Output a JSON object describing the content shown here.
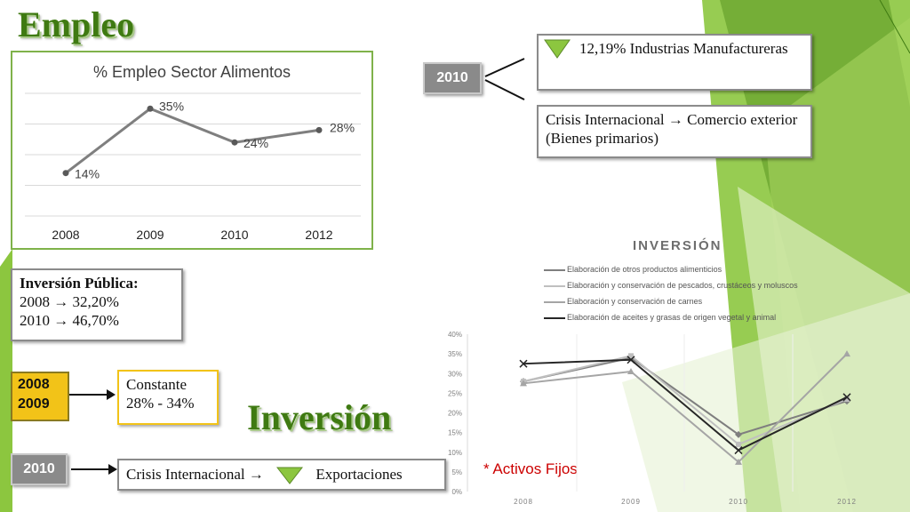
{
  "colors": {
    "green_dark": "#3f7a12",
    "green_light": "#8cc63f",
    "frame_green": "#7fb24a",
    "gold": "#f2c318",
    "red": "#cc0000"
  },
  "heading_empleo": "Empleo",
  "heading_inversion": "Inversión",
  "empleo_chart": {
    "chart_data": {
      "type": "line",
      "title": "% Empleo Sector Alimentos",
      "categories": [
        "2008",
        "2009",
        "2010",
        "2012"
      ],
      "values": [
        14,
        35,
        24,
        28
      ],
      "value_labels": [
        "14%",
        "35%",
        "24%",
        "28%"
      ],
      "color": "#7f7f7f",
      "grid": true,
      "legend": "none"
    }
  },
  "year_2010_top": "2010",
  "industria_box": {
    "text": "12,19% Industrias Manufactureras",
    "icon": "down-triangle-icon"
  },
  "crisis_box": {
    "text": "Crisis Internacional → Comercio exterior (Bienes primarios)"
  },
  "inversion_publica": {
    "title": "Inversión Pública:",
    "line1": "2008 → 32,20%",
    "line2": "2010 → 46,70%"
  },
  "year_box_2008_2009": {
    "line1": "2008",
    "line2": "2009"
  },
  "constante_box": {
    "line1": "Constante",
    "line2": "28% - 34%"
  },
  "year_2010_bottom": "2010",
  "crisis_export_box": {
    "prefix": "Crisis Internacional →",
    "suffix": "Exportaciones",
    "icon": "down-triangle-icon"
  },
  "activos_fijos": "* Activos Fijos",
  "inversion_chart": {
    "chart_data": {
      "type": "line",
      "title": "INVERSIÓN",
      "categories": [
        "2008",
        "2009",
        "2010",
        "2012"
      ],
      "y_tick_labels": [
        "0%",
        "5%",
        "10%",
        "15%",
        "20%",
        "25%",
        "30%",
        "35%",
        "40%"
      ],
      "ylim": [
        0,
        40
      ],
      "legend": "top",
      "series": [
        {
          "name": "Elaboración de otros productos alimenticios",
          "values": [
            28,
            34,
            14.5,
            23
          ],
          "color": "#7f7f7f",
          "marker": "diamond"
        },
        {
          "name": "Elaboración y conservación de pescados, crustáceos y moluscos",
          "values": [
            28,
            34.5,
            12,
            23.5
          ],
          "color": "#bfbfbf",
          "marker": "square"
        },
        {
          "name": "Elaboración y conservación de carnes",
          "values": [
            27.5,
            30.5,
            7.5,
            35
          ],
          "color": "#a5a5a5",
          "marker": "triangle"
        },
        {
          "name": "Elaboración de aceites y grasas de origen vegetal y animal",
          "values": [
            32.5,
            33.5,
            10.5,
            24
          ],
          "color": "#262626",
          "marker": "x"
        }
      ]
    }
  }
}
